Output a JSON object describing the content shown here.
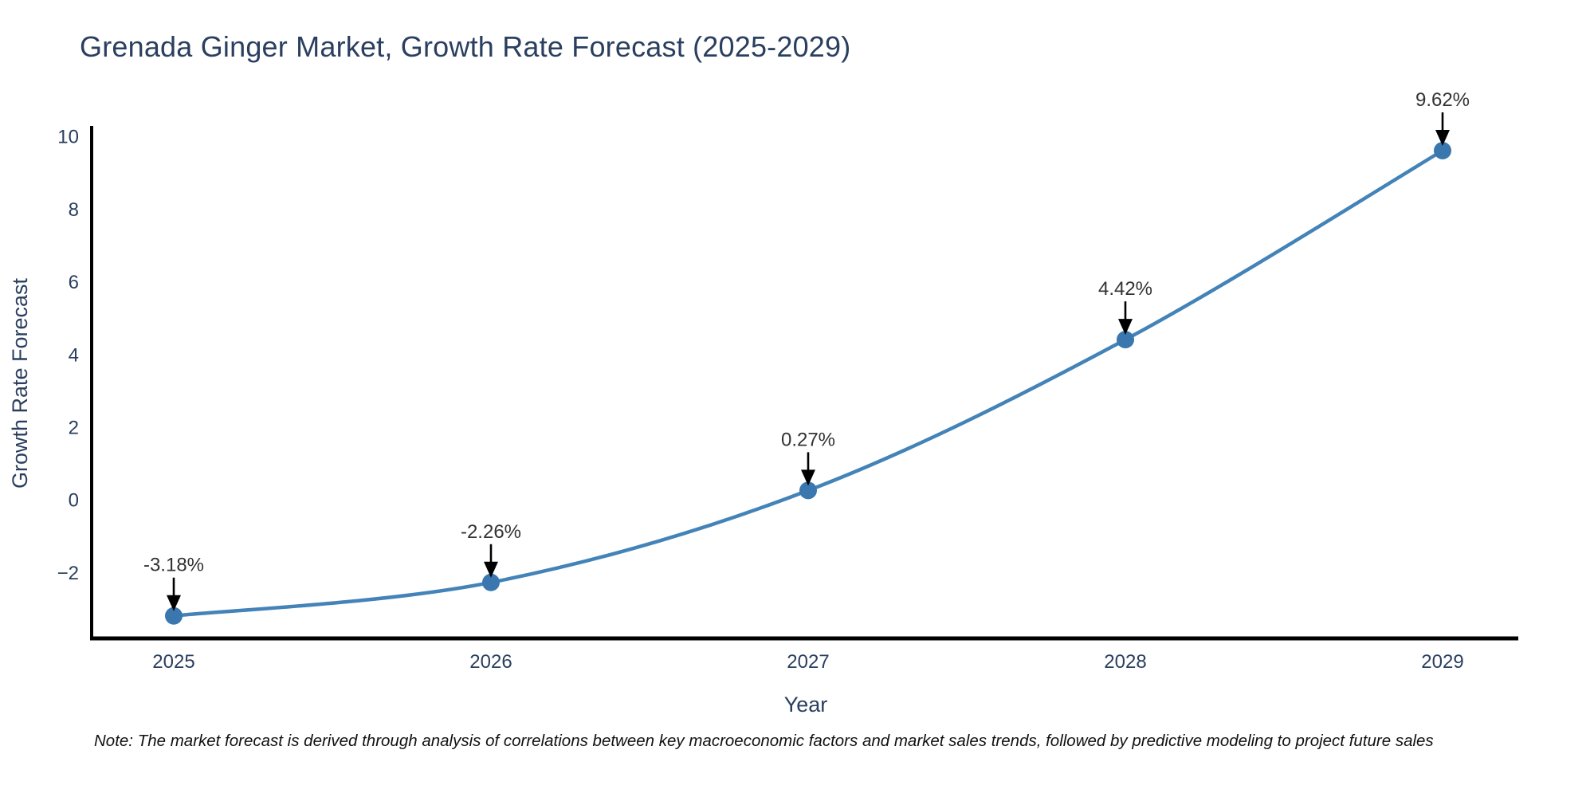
{
  "note": "Note: The market forecast is derived through analysis of correlations between key macroeconomic factors and market sales trends, followed by predictive modeling to project future sales",
  "chart_data": {
    "type": "line",
    "title": "Grenada Ginger Market, Growth Rate Forecast (2025-2029)",
    "xlabel": "Year",
    "ylabel": "Growth Rate Forecast",
    "x": [
      2025,
      2026,
      2027,
      2028,
      2029
    ],
    "y": [
      -3.18,
      -2.26,
      0.27,
      4.42,
      9.62
    ],
    "point_labels": [
      "-3.18%",
      "-2.26%",
      "0.27%",
      "4.42%",
      "9.62%"
    ],
    "xtick_labels": [
      "2025",
      "2026",
      "2027",
      "2028",
      "2029"
    ],
    "ytick_values": [
      -2,
      0,
      2,
      4,
      6,
      8,
      10
    ],
    "ytick_labels": [
      "−2",
      "0",
      "2",
      "4",
      "6",
      "8",
      "10"
    ],
    "ylim": [
      -3.8,
      10.3
    ],
    "grid": false,
    "legend": false,
    "line_color": "#4383b8",
    "marker_color": "#3a77ae",
    "axis_color": "#000000",
    "text_color": "#2a3f5f",
    "annotation_color": "#333333",
    "arrow_color": "#000000"
  }
}
